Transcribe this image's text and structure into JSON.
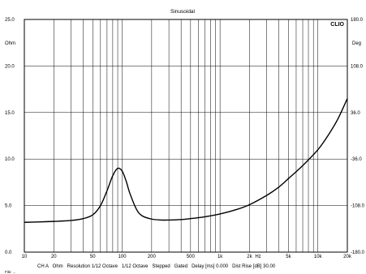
{
  "chart_data": {
    "type": "line",
    "title": "Sinusoidal",
    "brand": "CLIO",
    "x_scale": "log",
    "xlim": [
      10,
      20000
    ],
    "x_ticks": [
      10,
      20,
      50,
      100,
      200,
      500,
      1000,
      2000,
      5000,
      10000,
      20000
    ],
    "x_tick_labels": [
      "10",
      "20",
      "50",
      "100",
      "200",
      "500",
      "1k",
      "2k",
      "5k",
      "10k",
      "20k"
    ],
    "x_unit": "Hz",
    "ylim_left": [
      0,
      25
    ],
    "y_left_ticks": [
      0,
      5,
      10,
      15,
      20,
      25
    ],
    "y_left_tick_labels": [
      "0.0",
      "5.0",
      "10.0",
      "15.0",
      "20.0",
      "25.0"
    ],
    "y_left_unit": "Ohm",
    "ylim_right": [
      -180,
      180
    ],
    "y_right_ticks": [
      180,
      108,
      36,
      -36,
      -108,
      -180
    ],
    "y_right_tick_labels": [
      "180.0",
      "108.0",
      "36.0",
      "-36.0",
      "-108.0",
      "-180.0"
    ],
    "y_right_unit": "Deg",
    "grid": true,
    "series": [
      {
        "color": "#000000",
        "axis": "left",
        "x": [
          10,
          15,
          20,
          30,
          40,
          50,
          60,
          70,
          80,
          90,
          100,
          110,
          120,
          140,
          160,
          200,
          250,
          300,
          400,
          500,
          700,
          1000,
          1500,
          2000,
          3000,
          4000,
          5000,
          7000,
          10000,
          13000,
          16000,
          20000
        ],
        "y": [
          3.2,
          3.25,
          3.3,
          3.4,
          3.6,
          4.0,
          5.0,
          6.6,
          8.2,
          9.0,
          8.7,
          7.6,
          6.3,
          4.6,
          3.9,
          3.55,
          3.45,
          3.45,
          3.5,
          3.6,
          3.8,
          4.1,
          4.6,
          5.1,
          6.1,
          7.0,
          7.9,
          9.3,
          11.0,
          12.7,
          14.3,
          16.5
        ]
      }
    ],
    "footer": "CH A   Ohm   Resolution 1/12 Octave   1/12 Octave   Stepped   Gated   Delay [ms] 0.000   Dist Rise [dB] 30.00",
    "file_label": "File: ..."
  }
}
